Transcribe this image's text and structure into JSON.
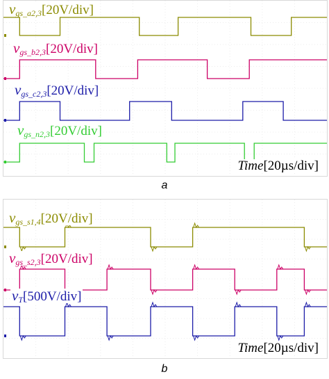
{
  "chart_data": [
    {
      "type": "line",
      "panel": "a",
      "caption": "a",
      "x_axis_label": "Time",
      "x_axis_scale": "[20µs/div]",
      "x_divisions": 10,
      "y_divisions": 8,
      "grid": true,
      "series": [
        {
          "name": "v_gs_a2,3",
          "symbol": "v",
          "subscript": "gs_a2,3",
          "scale": "[20V/div]",
          "color": "#8b8b00",
          "levels": [
            "high",
            "low"
          ],
          "transitions_div": [
            0.5,
            1.75,
            4.2,
            5.4,
            7.65,
            8.9
          ],
          "start_level": "high"
        },
        {
          "name": "v_gs_b2,3",
          "symbol": "v",
          "subscript": "gs_b2,3",
          "scale": "[20V/div]",
          "color": "#cc0066",
          "transitions_div": [
            0.5,
            2.85,
            4.15,
            6.3,
            7.6
          ],
          "start_level": "low"
        },
        {
          "name": "v_gs_c2,3",
          "symbol": "v",
          "subscript": "gs_c2,3",
          "scale": "[20V/div]",
          "color": "#1c1ca8",
          "transitions_div": [
            0.5,
            1.75,
            3.9,
            5.2,
            7.4,
            8.65
          ],
          "start_level": "low"
        },
        {
          "name": "v_gs_n2,3",
          "symbol": "v",
          "subscript": "gs_n2,3",
          "scale": "[20V/div]",
          "color": "#33cc33",
          "transitions_div": [
            0.5,
            2.5,
            2.8,
            5.05,
            5.3,
            7.45,
            7.75
          ],
          "start_level": "low"
        }
      ]
    },
    {
      "type": "line",
      "panel": "b",
      "caption": "b",
      "x_axis_label": "Time",
      "x_axis_scale": "[20µs/div]",
      "x_divisions": 10,
      "y_divisions": 8,
      "grid": true,
      "series": [
        {
          "name": "v_gs_s1,4",
          "symbol": "v",
          "subscript": "gs_s1,4",
          "scale": "[20V/div]",
          "color": "#8b8b00",
          "transitions_div": [
            0.5,
            1.9,
            4.55,
            5.85,
            9.3
          ],
          "start_level": "high"
        },
        {
          "name": "v_gs_s2,3",
          "symbol": "v",
          "subscript": "gs_s2,3",
          "scale": "[20V/div]",
          "color": "#cc0066",
          "transitions_div": [
            0.5,
            1.9,
            3.2,
            4.55,
            5.85,
            7.15,
            8.45,
            9.3
          ],
          "start_level": "low"
        },
        {
          "name": "v_T",
          "symbol": "v",
          "subscript": "T",
          "scale": "[500V/div]",
          "color": "#1c1ca8",
          "transitions_div": [
            0.5,
            1.9,
            3.2,
            4.55,
            5.85,
            7.15,
            8.45,
            9.3
          ],
          "start_level": "high"
        }
      ]
    }
  ]
}
